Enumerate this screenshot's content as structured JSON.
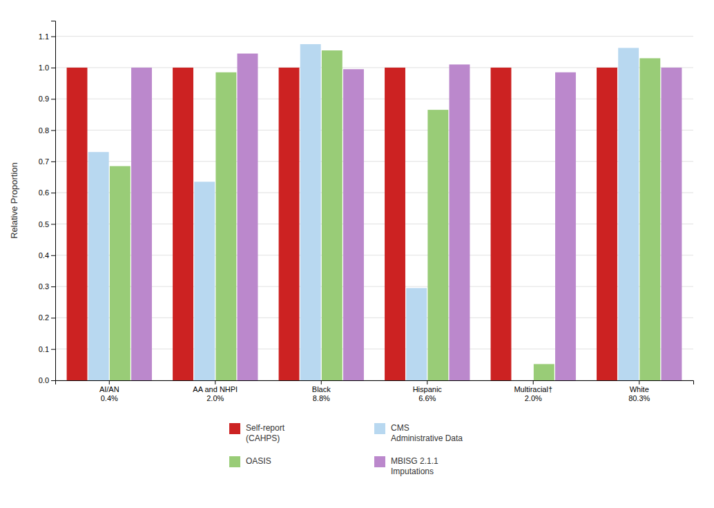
{
  "chart_data": {
    "type": "bar",
    "categories": [
      "AI/AN\n0.4%",
      "AA and NHPI\n2.0%",
      "Black\n8.8%",
      "Hispanic\n6.6%",
      "Multiracial†\n2.0%",
      "White\n80.3%"
    ],
    "series": [
      {
        "name": "Self-report\n(CAHPS)",
        "color": "#cc2222",
        "values": [
          1.0,
          1.0,
          1.0,
          1.0,
          1.0,
          1.0
        ]
      },
      {
        "name": "CMS\nAdministrative Data",
        "color": "#b8d8f0",
        "values": [
          0.73,
          0.635,
          1.075,
          0.295,
          null,
          1.063
        ]
      },
      {
        "name": "OASIS",
        "color": "#99cc77",
        "values": [
          0.685,
          0.985,
          1.055,
          0.865,
          0.052,
          1.03
        ]
      },
      {
        "name": "MBISG 2.1.1\nImputations",
        "color": "#bb88cc",
        "values": [
          1.0,
          1.045,
          0.995,
          1.01,
          0.985,
          1.0
        ]
      }
    ],
    "ylabel": "Relative Proportion",
    "ylim": [
      0.0,
      1.15
    ],
    "yticks": [
      {
        "value": 0.0,
        "label": "0.0"
      },
      0.1,
      0.2,
      0.3,
      0.4,
      0.5,
      0.6,
      0.7,
      0.8,
      0.9,
      {
        "value": 1.0,
        "label": "1.0"
      },
      1.1
    ],
    "grid": true,
    "legend": "bottom"
  }
}
